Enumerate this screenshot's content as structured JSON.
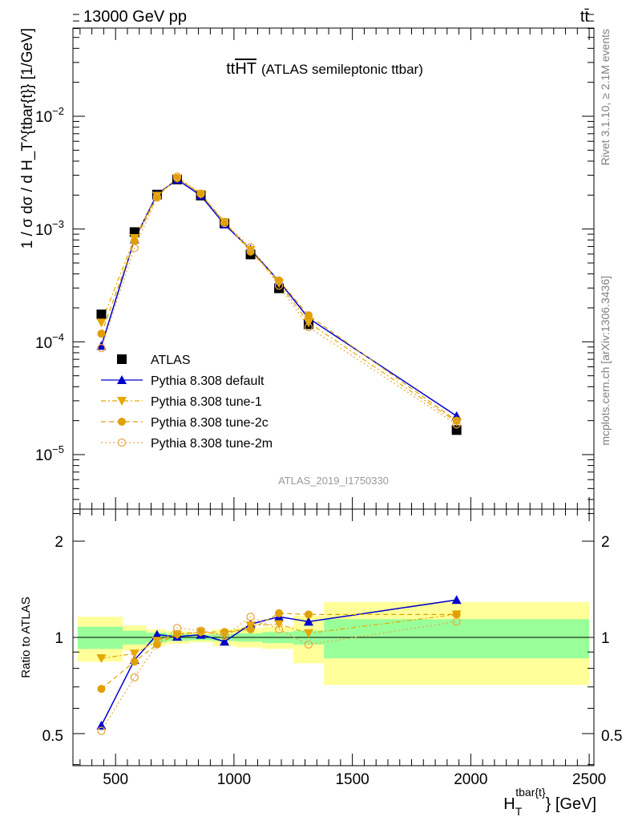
{
  "header": {
    "left": "13000 GeV pp",
    "right": "tt̄"
  },
  "side_labels": {
    "rivet": "Rivet 3.1.10, ≥ 2.1M events",
    "mcplots": "mcplots.cern.ch [arXiv:1306.3436]"
  },
  "chart_data": [
    {
      "type": "scatter",
      "panel": "main",
      "title_main": "tt",
      "title_over": "HT",
      "title_sub": "(ATLAS semileptonic ttbar)",
      "analysis_id": "ATLAS_2019_I1750330",
      "ylabel": "1 / σ dσ / d H_T^{tbar{t}} [1/GeV]",
      "xlim": [
        320,
        2520
      ],
      "ylim": [
        3e-06,
        0.08
      ],
      "yscale": "log",
      "ytick_labels": [
        "10^-5",
        "10^-4",
        "10^-3",
        "10^-2"
      ],
      "x": [
        440,
        580,
        675,
        760,
        860,
        960,
        1070,
        1190,
        1315,
        1940
      ],
      "legend_position": "bottom-left",
      "series": [
        {
          "name": "ATLAS",
          "color": "#000000",
          "marker": "square",
          "line": "none",
          "values": [
            0.000175,
            0.00094,
            0.00202,
            0.00275,
            0.00198,
            0.00112,
            0.000595,
            0.000298,
            0.000143,
            1.65e-05
          ]
        },
        {
          "name": "Pythia 8.308 default",
          "color": "#0000cc",
          "marker": "triangle-up",
          "line": "solid",
          "values": [
            9.2e-05,
            0.00081,
            0.00203,
            0.00275,
            0.00198,
            0.0011,
            0.00066,
            0.000345,
            0.000162,
            2.2e-05
          ]
        },
        {
          "name": "Pythia 8.308 tune-1",
          "color": "#e6a800",
          "marker": "triangle-down",
          "line": "dashdot",
          "values": [
            0.000148,
            0.00083,
            0.00197,
            0.00282,
            0.00205,
            0.00115,
            0.00065,
            0.00033,
            0.000148,
            1.95e-05
          ]
        },
        {
          "name": "Pythia 8.308 tune-2c",
          "color": "#e0a000",
          "marker": "circle",
          "line": "dashed",
          "values": [
            0.000118,
            0.00078,
            0.00193,
            0.00283,
            0.00205,
            0.00116,
            0.00063,
            0.00035,
            0.000172,
            2e-05
          ]
        },
        {
          "name": "Pythia 8.308 tune-2m",
          "color": "#e8a848",
          "marker": "circle-open",
          "line": "dotted",
          "values": [
            8.8e-05,
            0.00068,
            0.0019,
            0.00292,
            0.00206,
            0.00113,
            0.00069,
            0.000315,
            0.000135,
            1.85e-05
          ]
        }
      ]
    },
    {
      "type": "scatter",
      "panel": "ratio",
      "ylabel": "Ratio to ATLAS",
      "xlabel_main": "H",
      "xlabel_sub": "T",
      "xlabel_sup": "tbar{t}",
      "xlabel_unit": "} [GeV]",
      "xlim": [
        320,
        2520
      ],
      "ylim": [
        0.4,
        2.35
      ],
      "yscale": "log",
      "ytick_labels": [
        "0.5",
        "1",
        "2"
      ],
      "xtick_labels": [
        "500",
        "1000",
        "1500",
        "2000",
        "2500"
      ],
      "xtick_values": [
        500,
        1000,
        1500,
        2000,
        2500
      ],
      "bands": {
        "edges": [
          340,
          530,
          630,
          715,
          810,
          910,
          1010,
          1120,
          1250,
          1380,
          2500
        ],
        "green_lo": [
          0.92,
          0.95,
          0.965,
          0.975,
          0.98,
          0.975,
          0.97,
          0.96,
          0.95,
          0.86
        ],
        "green_hi": [
          1.08,
          1.05,
          1.035,
          1.025,
          1.02,
          1.025,
          1.03,
          1.04,
          1.05,
          1.14
        ],
        "yellow_lo": [
          0.84,
          0.91,
          0.94,
          0.955,
          0.965,
          0.94,
          0.93,
          0.92,
          0.83,
          0.71
        ],
        "yellow_hi": [
          1.16,
          1.09,
          1.06,
          1.045,
          1.035,
          1.06,
          1.07,
          1.08,
          1.17,
          1.29
        ]
      },
      "series": [
        {
          "name": "Pythia 8.308 default",
          "values": [
            0.53,
            0.85,
            1.02,
            1.005,
            1.02,
            0.97,
            1.1,
            1.16,
            1.12,
            1.31
          ]
        },
        {
          "name": "Pythia 8.308 tune-1",
          "values": [
            0.86,
            0.89,
            0.975,
            1.02,
            1.04,
            1.02,
            1.09,
            1.1,
            1.03,
            1.18
          ]
        },
        {
          "name": "Pythia 8.308 tune-2c",
          "values": [
            0.69,
            0.84,
            0.95,
            1.025,
            1.04,
            1.04,
            1.06,
            1.19,
            1.18,
            1.18
          ]
        },
        {
          "name": "Pythia 8.308 tune-2m",
          "values": [
            0.51,
            0.75,
            0.95,
            1.07,
            1.05,
            1.01,
            1.16,
            1.06,
            0.95,
            1.12
          ]
        }
      ]
    }
  ]
}
